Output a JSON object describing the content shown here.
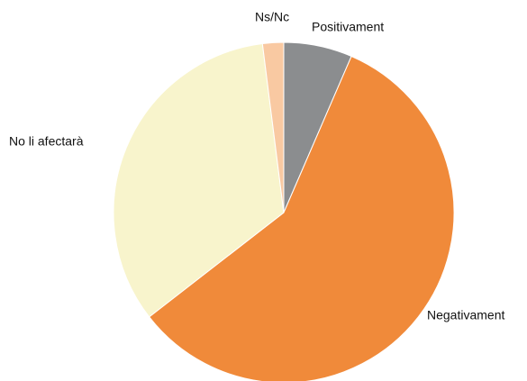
{
  "chart_data": {
    "type": "pie",
    "categories": [
      "Positivament",
      "Negativament",
      "No li afectarà",
      "Ns/Nc"
    ],
    "values": [
      6.5,
      58,
      33.5,
      2
    ],
    "colors": [
      "#8b8d8f",
      "#f08a3a",
      "#f8f4cc",
      "#f9c9a2"
    ]
  }
}
